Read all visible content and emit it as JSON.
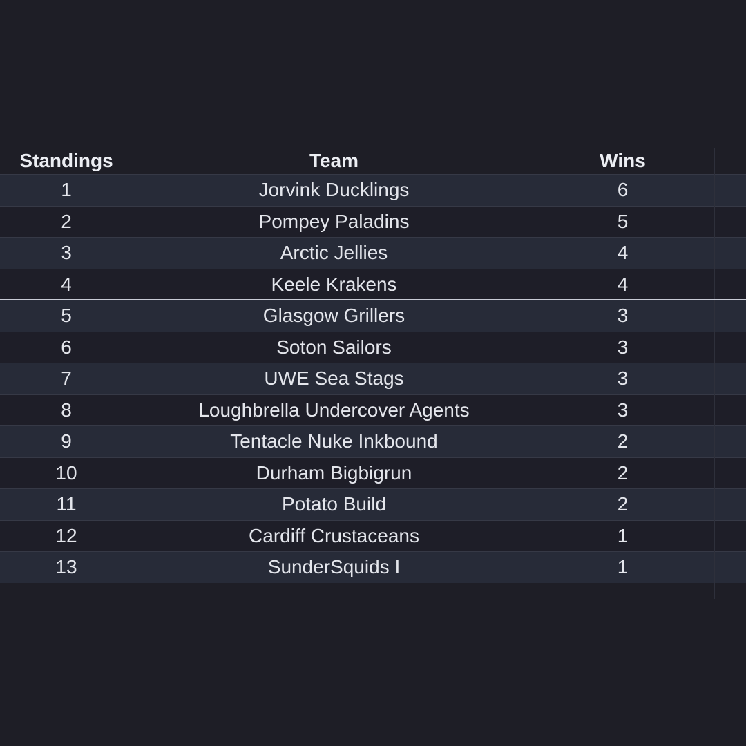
{
  "table": {
    "columns": [
      "Standings",
      "Team",
      "Wins"
    ],
    "rows": [
      {
        "standing": "1",
        "team": "Jorvink Ducklings",
        "wins": "6"
      },
      {
        "standing": "2",
        "team": "Pompey Paladins",
        "wins": "5"
      },
      {
        "standing": "3",
        "team": "Arctic Jellies",
        "wins": "4"
      },
      {
        "standing": "4",
        "team": "Keele Krakens",
        "wins": "4"
      },
      {
        "standing": "5",
        "team": "Glasgow Grillers",
        "wins": "3"
      },
      {
        "standing": "6",
        "team": "Soton Sailors",
        "wins": "3"
      },
      {
        "standing": "7",
        "team": "UWE Sea Stags",
        "wins": "3"
      },
      {
        "standing": "8",
        "team": "Loughbrella Undercover Agents",
        "wins": "3"
      },
      {
        "standing": "9",
        "team": "Tentacle Nuke Inkbound",
        "wins": "2"
      },
      {
        "standing": "10",
        "team": "Durham Bigbigrun",
        "wins": "2"
      },
      {
        "standing": "11",
        "team": "Potato Build",
        "wins": "2"
      },
      {
        "standing": "12",
        "team": "Cardiff Crustaceans",
        "wins": "1"
      },
      {
        "standing": "13",
        "team": "SunderSquids I",
        "wins": "1"
      }
    ]
  },
  "colors": {
    "background": "#1e1e26",
    "row_odd": "#272b38",
    "row_even": "#1e1e28",
    "text": "#e4e6ec",
    "divider": "#c9ccd6"
  }
}
